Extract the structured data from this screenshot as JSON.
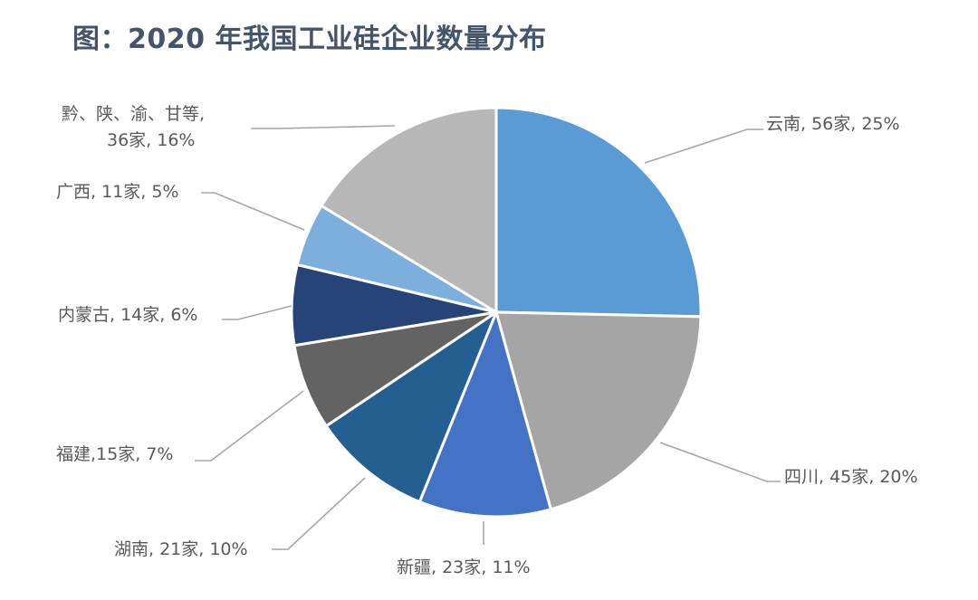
{
  "title": "图：2020 年我国工业硅企业数量分布",
  "chart_data": {
    "type": "pie",
    "title": "图：2020 年我国工业硅企业数量分布",
    "unit": "家",
    "start_angle": "12 o'clock, clockwise",
    "categories": [
      "云南",
      "四川",
      "新疆",
      "湖南",
      "福建",
      "内蒙古",
      "广西",
      "黔、陕、渝、甘等"
    ],
    "values": [
      56,
      45,
      23,
      21,
      15,
      14,
      11,
      36
    ],
    "percentages": [
      25,
      20,
      11,
      10,
      7,
      6,
      5,
      16
    ],
    "colors": [
      "#5b9bd5",
      "#a5a5a5",
      "#4472c4",
      "#255e91",
      "#636363",
      "#264478",
      "#7cafdd",
      "#b7b7b7"
    ],
    "labels": [
      "云南, 56家, 25%",
      "四川, 45家, 20%",
      "新疆, 23家, 11%",
      "湖南, 21家, 10%",
      "福建,15家, 7%",
      "内蒙古, 14家, 6%",
      "广西, 11家, 5%",
      "黔、陕、渝、甘等,\n36家, 16%"
    ],
    "legend": "none (data labels with leader lines)"
  },
  "labels": {
    "yunnan": "云南, 56家, 25%",
    "sichuan": "四川, 45家, 20%",
    "xinjiang": "新疆, 23家, 11%",
    "hunan": "湖南, 21家, 10%",
    "fujian": "福建,15家, 7%",
    "neimenggu": "内蒙古, 14家, 6%",
    "guangxi": "广西, 11家, 5%",
    "others_line1": "黔、陕、渝、甘等,",
    "others_line2": "36家, 16%"
  }
}
